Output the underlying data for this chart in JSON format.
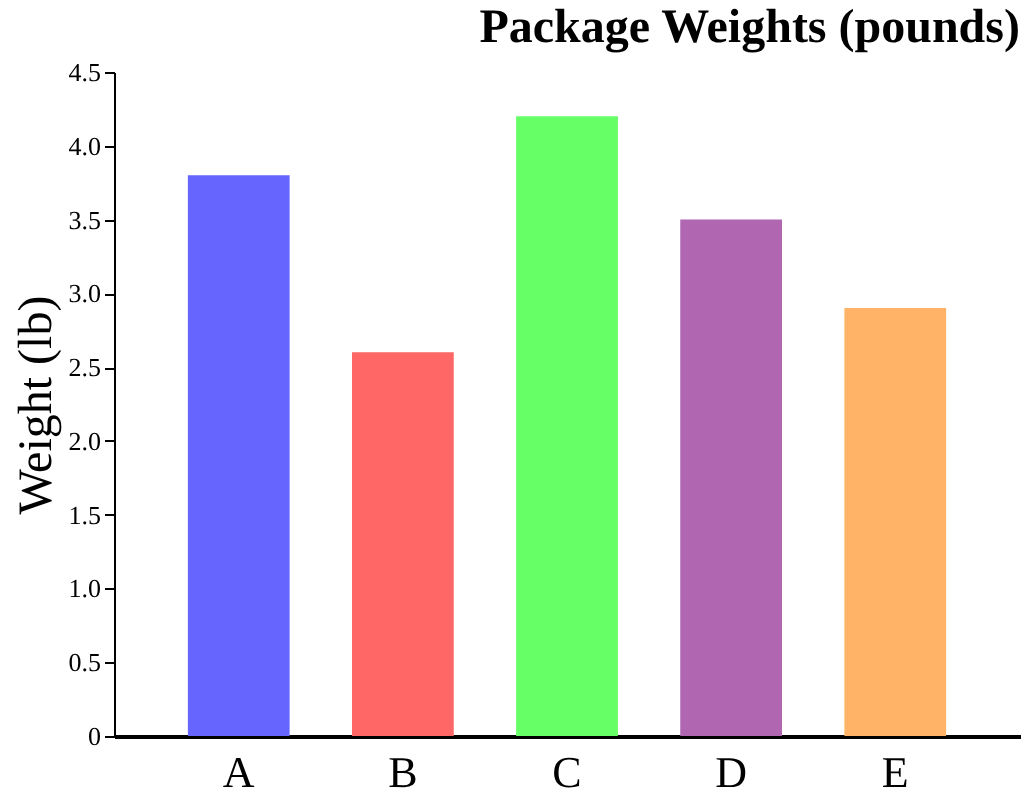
{
  "chart_data": {
    "type": "bar",
    "title": "Package Weights (pounds)",
    "ylabel": "Weight (lb)",
    "categories": [
      "A",
      "B",
      "C",
      "D",
      "E"
    ],
    "values": [
      3.8,
      2.6,
      4.2,
      3.5,
      2.9
    ],
    "colors": [
      "#6666ff",
      "#ff6666",
      "#66ff66",
      "#b066b0",
      "#ffb366"
    ],
    "ylim": [
      0,
      4.5
    ],
    "yticks": [
      0,
      0.5,
      {
        "value": 1,
        "label": "1.0"
      },
      1.5,
      {
        "value": 2,
        "label": "2.0"
      },
      2.5,
      {
        "value": 3,
        "label": "3.0"
      },
      3.5,
      {
        "value": 4,
        "label": "4.0"
      },
      4.5
    ],
    "grid": false
  }
}
